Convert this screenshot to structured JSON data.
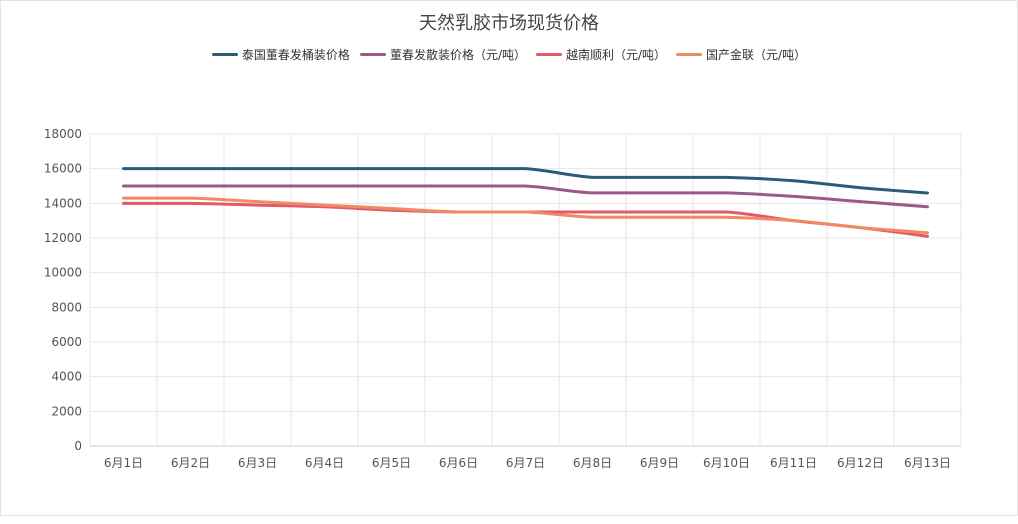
{
  "chart_data": {
    "type": "line",
    "title": "天然乳胶市场现货价格",
    "categories": [
      "6月1日",
      "6月2日",
      "6月3日",
      "6月4日",
      "6月5日",
      "6月6日",
      "6月7日",
      "6月8日",
      "6月9日",
      "6月10日",
      "6月11日",
      "6月12日",
      "6月13日"
    ],
    "ylim": [
      0,
      18000
    ],
    "yticks": [
      0,
      2000,
      4000,
      6000,
      8000,
      10000,
      12000,
      14000,
      16000,
      18000
    ],
    "grid": true,
    "legend_position": "top",
    "series": [
      {
        "name": "泰国董春发桶装价格",
        "color": "#2e5a7a",
        "values": [
          16000,
          16000,
          16000,
          16000,
          16000,
          16000,
          16000,
          15500,
          15500,
          15500,
          15300,
          14900,
          14600
        ]
      },
      {
        "name": "董春发散装价格（元/吨）",
        "color": "#9a5a85",
        "values": [
          15000,
          15000,
          15000,
          15000,
          15000,
          15000,
          15000,
          14600,
          14600,
          14600,
          14400,
          14100,
          13800
        ]
      },
      {
        "name": "越南顺利（元/吨）",
        "color": "#e05a6a",
        "values": [
          14000,
          14000,
          13900,
          13800,
          13600,
          13500,
          13500,
          13500,
          13500,
          13500,
          13000,
          12600,
          12100
        ]
      },
      {
        "name": "国产金联（元/吨）",
        "color": "#f08a66",
        "values": [
          14300,
          14300,
          14100,
          13900,
          13700,
          13500,
          13500,
          13200,
          13200,
          13200,
          13000,
          12600,
          12300
        ]
      }
    ]
  }
}
